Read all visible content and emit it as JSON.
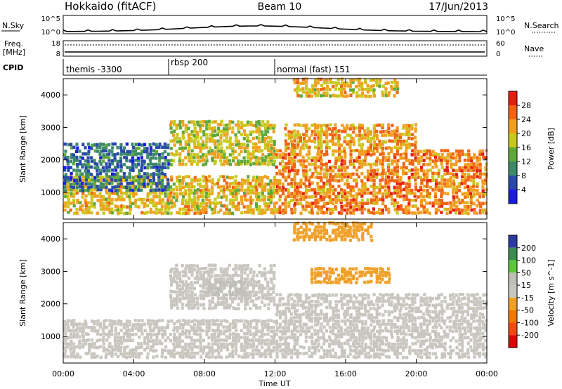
{
  "header": {
    "station": "Hokkaido (fitACF)",
    "beam": "Beam 10",
    "date": "17/Jun/2013"
  },
  "top_panels": {
    "nsky_label": "N.Sky",
    "nsky_ticks": [
      "10^5",
      "10^0"
    ],
    "nsearch_label": "N.Search",
    "nsearch_ticks": [
      "10^5",
      "10^0"
    ],
    "freq_label_1": "Freq.",
    "freq_label_2": "[MHz]",
    "freq_ticks": [
      "18",
      "8"
    ],
    "nave_label": "Nave",
    "nave_ticks": [
      "60",
      "0"
    ],
    "cpid_label": "CPID",
    "cpid_segments": [
      {
        "label": "themis -3300",
        "start_h": 0
      },
      {
        "label": "rbsp 200",
        "start_h": 6
      },
      {
        "label": "normal (fast) 151",
        "start_h": 12
      }
    ]
  },
  "colors": {
    "power_scale": [
      "#1a1ae6",
      "#2a4aa8",
      "#3d8a6a",
      "#5fa83a",
      "#c8c81e",
      "#f0a01e",
      "#f06414",
      "#e61e10"
    ],
    "velocity_scale": [
      "#e60000",
      "#f04a14",
      "#f07a00",
      "#f0a028",
      "#c8c8c0",
      "#c0c0b8",
      "#5ac83a",
      "#3c8c50",
      "#2a3ca0"
    ],
    "ground_scatter": "#c8c6bf"
  },
  "chart_data": [
    {
      "type": "heatmap",
      "name": "power",
      "ylabel": "Slant Range [km]",
      "xlabel": "Time UT",
      "x_ticks": [
        "00:00",
        "04:00",
        "08:00",
        "12:00",
        "16:00",
        "20:00",
        "00:00"
      ],
      "xlim_hours": [
        0,
        24
      ],
      "ylim_km": [
        180,
        4500
      ],
      "y_ticks": [
        1000,
        2000,
        3000,
        4000
      ],
      "colorbar_label": "Power [dB]",
      "colorbar_ticks": [
        4,
        8,
        12,
        16,
        20,
        24,
        28
      ],
      "colorbar_range": [
        0,
        32
      ],
      "bands": [
        {
          "start_h": 0.0,
          "end_h": 12.0,
          "r0_km": 300,
          "r1_km": 1500,
          "level": 20
        },
        {
          "start_h": 0.0,
          "end_h": 6.0,
          "r0_km": 1000,
          "r1_km": 2500,
          "level": 8
        },
        {
          "start_h": 6.0,
          "end_h": 12.0,
          "r0_km": 1800,
          "r1_km": 3200,
          "level": 18
        },
        {
          "start_h": 12.0,
          "end_h": 24.0,
          "r0_km": 300,
          "r1_km": 2300,
          "level": 24
        },
        {
          "start_h": 12.5,
          "end_h": 20.0,
          "r0_km": 2300,
          "r1_km": 3100,
          "level": 22
        },
        {
          "start_h": 13.0,
          "end_h": 19.0,
          "r0_km": 3900,
          "r1_km": 4450,
          "level": 20
        }
      ]
    },
    {
      "type": "heatmap",
      "name": "velocity",
      "ylabel": "Slant Range [km]",
      "xlabel": "Time UT",
      "x_ticks": [
        "00:00",
        "04:00",
        "08:00",
        "12:00",
        "16:00",
        "20:00",
        "00:00"
      ],
      "xlim_hours": [
        0,
        24
      ],
      "ylim_km": [
        180,
        4500
      ],
      "y_ticks": [
        1000,
        2000,
        3000,
        4000
      ],
      "colorbar_label": "Velocity [m s^-1]",
      "colorbar_ticks": [
        200,
        100,
        50,
        15,
        -15,
        -50,
        -100,
        -200
      ],
      "colorbar_range": [
        -250,
        250
      ],
      "bands": [
        {
          "start_h": 0.0,
          "end_h": 12.0,
          "r0_km": 300,
          "r1_km": 1500,
          "level": 0
        },
        {
          "start_h": 6.0,
          "end_h": 12.0,
          "r0_km": 1800,
          "r1_km": 3200,
          "level": 0
        },
        {
          "start_h": 12.0,
          "end_h": 24.0,
          "r0_km": 300,
          "r1_km": 2300,
          "level": 0
        },
        {
          "start_h": 14.0,
          "end_h": 18.5,
          "r0_km": 2600,
          "r1_km": 3100,
          "level": 60
        },
        {
          "start_h": 13.0,
          "end_h": 17.5,
          "r0_km": 3900,
          "r1_km": 4450,
          "level": 60
        },
        {
          "start_h": 8.0,
          "end_h": 10.5,
          "r0_km": 2200,
          "r1_km": 2700,
          "level": -70
        }
      ]
    }
  ]
}
